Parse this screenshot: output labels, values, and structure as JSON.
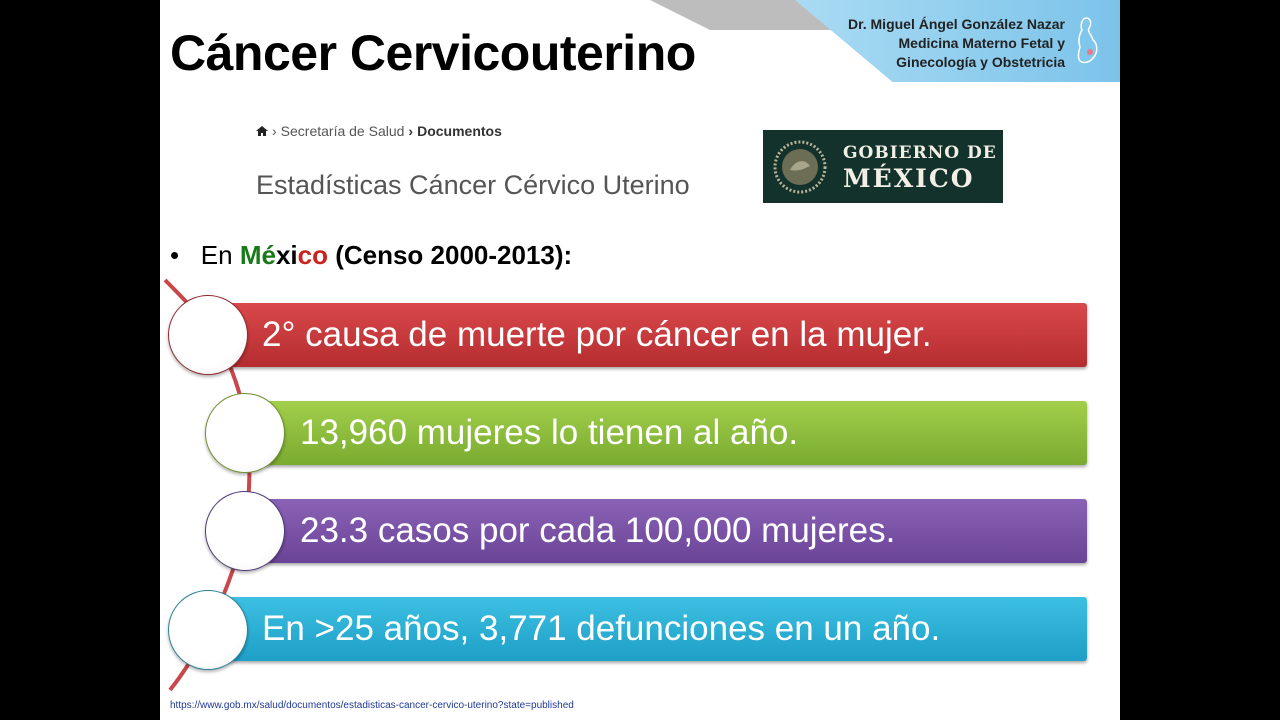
{
  "title": "Cáncer Cervicouterino",
  "banner": {
    "lines": [
      "Dr. Miguel Ángel González Nazar",
      "Medicina Materno Fetal y",
      "Ginecología y Obstetricia"
    ],
    "icon": "pregnant-woman-icon"
  },
  "breadcrumb": {
    "icon": "home-icon",
    "items": [
      "Secretaría de Salud",
      "Documentos"
    ],
    "separator": "›"
  },
  "page_heading": "Estadísticas Cáncer Cérvico Uterino",
  "logo": {
    "line1": "GOBIERNO DE",
    "line2": "MÉXICO"
  },
  "bullet": {
    "prefix": "En ",
    "mex_green": "Mé",
    "mex_white": "xi",
    "mex_red": "co",
    "suffix": " (Censo 2000-2013):"
  },
  "items": [
    {
      "text": "2° causa de muerte por cáncer en la mujer.",
      "color": "#c9383a"
    },
    {
      "text": "13,960 mujeres lo tienen al año.",
      "color": "#8dc23e"
    },
    {
      "text": "23.3 casos por cada 100,000 mujeres.",
      "color": "#7a52a6"
    },
    {
      "text": "En >25 años, 3,771 defunciones en un año.",
      "color": "#29b2d8"
    }
  ],
  "source": "https://www.gob.mx/salud/documentos/estadisticas-cancer-cervico-uterino?state=published"
}
